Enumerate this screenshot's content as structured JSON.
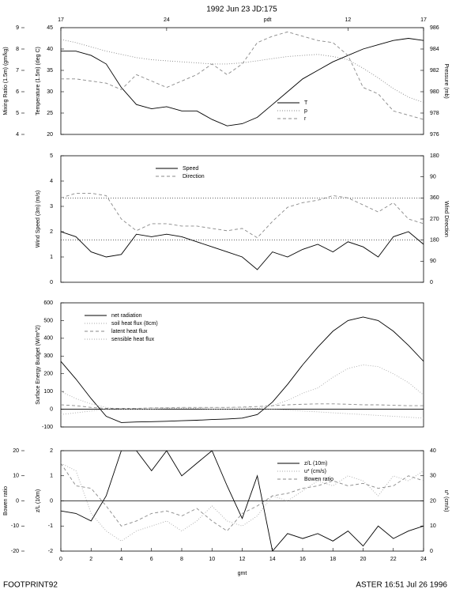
{
  "title": "1992 Jun 23 JD:175",
  "footer_left": "FOOTPRINT92",
  "footer_right": "ASTER 16:51 Jul 26 1996",
  "chart_data": [
    {
      "type": "line",
      "x": [
        0,
        1,
        2,
        3,
        4,
        5,
        6,
        7,
        8,
        9,
        10,
        11,
        12,
        13,
        14,
        15,
        16,
        17,
        18,
        19,
        20,
        21,
        22,
        23,
        24
      ],
      "xlim": [
        0,
        24
      ],
      "x2ticks": [
        {
          "value": 0,
          "label": "17"
        },
        {
          "value": 7,
          "label": "24"
        },
        {
          "value": 19,
          "label": "12"
        },
        {
          "value": 24,
          "label": "17"
        }
      ],
      "x2label": "pdt",
      "ylabel": "Temperature (1.5m) (deg C)",
      "ylim": [
        20,
        45
      ],
      "yticks": [
        20,
        25,
        30,
        35,
        40,
        45
      ],
      "y2label": "Pressure (mb)",
      "y2lim": [
        976,
        986
      ],
      "y2ticks": [
        976,
        978,
        980,
        982,
        984,
        986
      ],
      "y3label": "Mixing Ratio (1.5m) (gm/kg)",
      "y3lim": [
        4,
        9
      ],
      "y3ticks": [
        4,
        5,
        6,
        7,
        8,
        9
      ],
      "legend": "lower right",
      "series": [
        {
          "name": "T",
          "color": "#000000",
          "style": "solid",
          "values": [
            39.5,
            39.5,
            38.5,
            36.5,
            31,
            27,
            26,
            26.5,
            25.5,
            25.5,
            23.5,
            22,
            22.5,
            24,
            27,
            30,
            33,
            35,
            37,
            38.5,
            40,
            41,
            42,
            42.5,
            42
          ]
        },
        {
          "name": "p",
          "color": "#888888",
          "style": "dotted",
          "axis": "y2",
          "values": [
            984.9,
            984.6,
            984.2,
            983.8,
            983.5,
            983.2,
            983,
            982.9,
            982.8,
            982.7,
            982.6,
            982.6,
            982.7,
            982.9,
            983.1,
            983.3,
            983.4,
            983.5,
            983.3,
            983,
            982.2,
            981.3,
            980.3,
            979.5,
            979
          ]
        },
        {
          "name": "r",
          "color": "#888888",
          "style": "dashed",
          "axis": "y3",
          "values": [
            6.6,
            6.6,
            6.5,
            6.4,
            6.1,
            6.8,
            6.5,
            6.2,
            6.5,
            6.8,
            7.3,
            6.8,
            7.3,
            8.3,
            8.6,
            8.8,
            8.6,
            8.4,
            8.3,
            7.7,
            6.2,
            5.9,
            5.1,
            4.9,
            4.7
          ]
        }
      ]
    },
    {
      "type": "line",
      "x": [
        0,
        1,
        2,
        3,
        4,
        5,
        6,
        7,
        8,
        9,
        10,
        11,
        12,
        13,
        14,
        15,
        16,
        17,
        18,
        19,
        20,
        21,
        22,
        23,
        24
      ],
      "xlim": [
        0,
        24
      ],
      "ylabel": "Wind Speed (3m) (m/s)",
      "ylim": [
        0,
        5
      ],
      "yticks": [
        0,
        1,
        2,
        3,
        4,
        5
      ],
      "y2label": "Wind Direction",
      "y2lim": [
        0,
        540
      ],
      "y2ticks": [
        0,
        90,
        180,
        270,
        360,
        {
          "value": 450,
          "label": "90"
        },
        {
          "value": 540,
          "label": "180"
        }
      ],
      "ref_lines_y2": [
        180,
        360
      ],
      "legend": "upper center",
      "series": [
        {
          "name": "Speed",
          "color": "#000000",
          "style": "solid",
          "values": [
            2.0,
            1.8,
            1.2,
            1.0,
            1.1,
            1.9,
            1.8,
            1.9,
            1.8,
            1.6,
            1.4,
            1.2,
            1.0,
            0.5,
            1.2,
            1.0,
            1.3,
            1.5,
            1.2,
            1.6,
            1.4,
            1.0,
            1.8,
            2.0,
            1.5
          ]
        },
        {
          "name": "Direction",
          "color": "#888888",
          "style": "dashed",
          "axis": "y2",
          "values": [
            360,
            380,
            380,
            370,
            270,
            220,
            250,
            250,
            240,
            240,
            230,
            220,
            230,
            190,
            260,
            320,
            340,
            350,
            370,
            360,
            330,
            300,
            340,
            270,
            250
          ]
        }
      ]
    },
    {
      "type": "line",
      "x": [
        0,
        1,
        2,
        3,
        4,
        5,
        6,
        7,
        8,
        9,
        10,
        11,
        12,
        13,
        14,
        15,
        16,
        17,
        18,
        19,
        20,
        21,
        22,
        23,
        24
      ],
      "xlim": [
        0,
        24
      ],
      "ylabel": "Surface Energy Budget (W/m^2)",
      "ylim": [
        -100,
        600
      ],
      "yticks": [
        -100,
        0,
        100,
        200,
        300,
        400,
        500,
        600
      ],
      "zero_line": true,
      "legend": "upper left",
      "series": [
        {
          "name": "net radiation",
          "color": "#000000",
          "style": "solid",
          "values": [
            270,
            170,
            60,
            -40,
            -75,
            -72,
            -70,
            -68,
            -65,
            -62,
            -58,
            -55,
            -50,
            -30,
            40,
            140,
            250,
            350,
            440,
            500,
            520,
            500,
            440,
            360,
            270
          ]
        },
        {
          "name": "soil heat flux (8cm)",
          "color": "#aaaaaa",
          "style": "dotted",
          "values": [
            100,
            60,
            30,
            10,
            0,
            0,
            0,
            5,
            5,
            5,
            0,
            0,
            0,
            5,
            20,
            50,
            90,
            120,
            180,
            230,
            250,
            240,
            200,
            150,
            80
          ]
        },
        {
          "name": "latent heat flux",
          "color": "#888888",
          "style": "dashed",
          "values": [
            25,
            20,
            10,
            5,
            5,
            5,
            8,
            8,
            10,
            10,
            10,
            10,
            12,
            15,
            20,
            25,
            28,
            30,
            30,
            28,
            25,
            25,
            22,
            20,
            20
          ]
        },
        {
          "name": "sensible heat flux",
          "color": "#aaaaaa",
          "style": "dotted",
          "values": [
            -30,
            -20,
            -10,
            0,
            5,
            5,
            8,
            10,
            10,
            10,
            10,
            10,
            10,
            5,
            0,
            -5,
            -10,
            -15,
            -20,
            -25,
            -30,
            -35,
            -40,
            -45,
            -50
          ]
        }
      ]
    },
    {
      "type": "line",
      "x": [
        0,
        1,
        2,
        3,
        4,
        5,
        6,
        7,
        8,
        9,
        10,
        11,
        12,
        13,
        14,
        15,
        16,
        17,
        18,
        19,
        20,
        21,
        22,
        23,
        24
      ],
      "xlim": [
        0,
        24
      ],
      "xticks": [
        0,
        2,
        4,
        6,
        8,
        10,
        12,
        14,
        16,
        18,
        20,
        22,
        24
      ],
      "xlabel": "gmt",
      "ylabel": "z/L (10m)",
      "ylim": [
        -2,
        2
      ],
      "yticks": [
        -2,
        -1,
        0,
        1,
        2
      ],
      "y2label": "u* (cm/s)",
      "y2lim": [
        0,
        40
      ],
      "y2ticks": [
        0,
        10,
        20,
        30,
        40
      ],
      "y3label": "Bowen ratio",
      "y3lim": [
        -20,
        20
      ],
      "y3ticks": [
        -20,
        -10,
        0,
        10,
        20
      ],
      "zero_line": true,
      "legend": "upper right",
      "series": [
        {
          "name": "z/L (10m)",
          "color": "#000000",
          "style": "solid",
          "values": [
            -0.4,
            -0.5,
            -0.8,
            0.2,
            2,
            2,
            1.2,
            2,
            1.0,
            1.5,
            2,
            0.6,
            -0.7,
            1.0,
            -2,
            -1.3,
            -1.5,
            -1.3,
            -1.6,
            -1.2,
            -1.8,
            -1.0,
            -1.5,
            -1.2,
            -1.0
          ]
        },
        {
          "name": "u* (cm/s)",
          "color": "#aaaaaa",
          "style": "dotted",
          "axis": "y2",
          "values": [
            35,
            32,
            15,
            8,
            4,
            8,
            10,
            12,
            8,
            12,
            18,
            12,
            10,
            14,
            22,
            20,
            24,
            28,
            26,
            30,
            28,
            22,
            30,
            28,
            32
          ]
        },
        {
          "name": "Bowen ratio",
          "color": "#888888",
          "style": "dashed",
          "axis": "y3",
          "values": [
            15,
            6,
            5,
            -2,
            -10,
            -8,
            -5,
            -4,
            -6,
            -3,
            -8,
            -12,
            -5,
            -2,
            2,
            3,
            5,
            6,
            8,
            6,
            7,
            5,
            6,
            10,
            8
          ]
        }
      ]
    }
  ]
}
